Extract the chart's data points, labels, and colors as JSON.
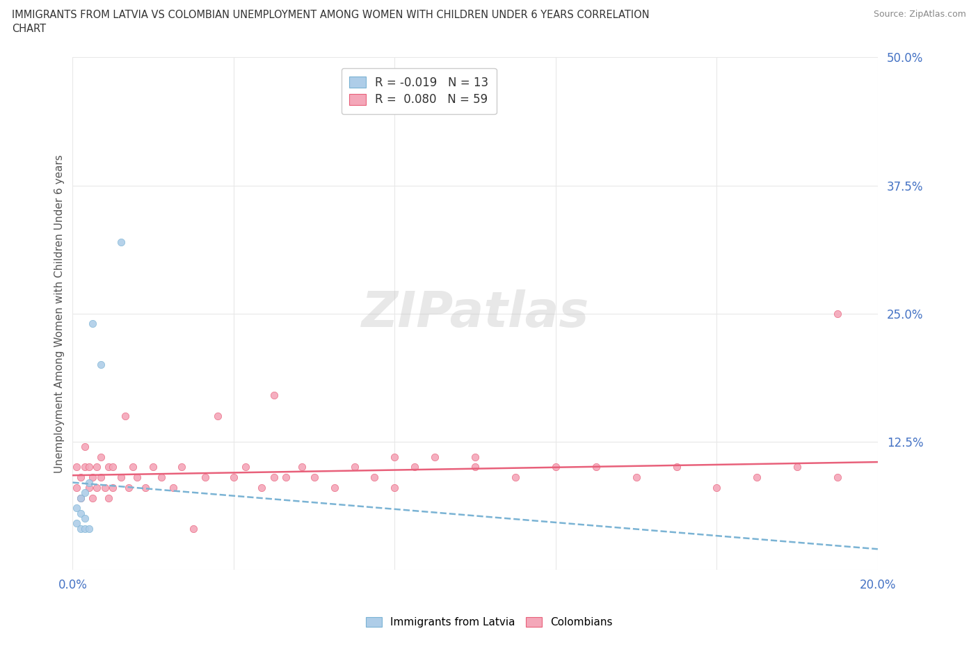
{
  "title_line1": "IMMIGRANTS FROM LATVIA VS COLOMBIAN UNEMPLOYMENT AMONG WOMEN WITH CHILDREN UNDER 6 YEARS CORRELATION",
  "title_line2": "CHART",
  "source": "Source: ZipAtlas.com",
  "ylabel": "Unemployment Among Women with Children Under 6 years",
  "xlim": [
    0.0,
    0.2
  ],
  "ylim": [
    0.0,
    0.5
  ],
  "xticks": [
    0.0,
    0.04,
    0.08,
    0.12,
    0.16,
    0.2
  ],
  "xtick_labels": [
    "0.0%",
    "",
    "",
    "",
    "",
    "20.0%"
  ],
  "yticks": [
    0.0,
    0.125,
    0.25,
    0.375,
    0.5
  ],
  "ytick_labels": [
    "",
    "12.5%",
    "25.0%",
    "37.5%",
    "50.0%"
  ],
  "color_latvia": "#aecde8",
  "color_colombia": "#f4a7b9",
  "color_trendline_latvia": "#7ab3d4",
  "color_trendline_colombia": "#e8607a",
  "color_text_blue": "#4472c4",
  "background_color": "#ffffff",
  "grid_color": "#e8e8e8",
  "watermark": "ZIPatlas",
  "legend_label1": "R = -0.019   N = 13",
  "legend_label2": "R =  0.080   N = 59",
  "bottom_legend_label1": "Immigrants from Latvia",
  "bottom_legend_label2": "Colombians",
  "latvia_x": [
    0.001,
    0.001,
    0.002,
    0.002,
    0.002,
    0.003,
    0.003,
    0.003,
    0.004,
    0.004,
    0.005,
    0.007,
    0.012
  ],
  "latvia_y": [
    0.045,
    0.06,
    0.04,
    0.055,
    0.07,
    0.04,
    0.05,
    0.075,
    0.04,
    0.085,
    0.24,
    0.2,
    0.32
  ],
  "colombia_x": [
    0.001,
    0.001,
    0.002,
    0.002,
    0.003,
    0.003,
    0.004,
    0.004,
    0.005,
    0.005,
    0.006,
    0.006,
    0.007,
    0.007,
    0.008,
    0.009,
    0.009,
    0.01,
    0.01,
    0.012,
    0.013,
    0.014,
    0.015,
    0.016,
    0.018,
    0.02,
    0.022,
    0.025,
    0.027,
    0.03,
    0.033,
    0.036,
    0.04,
    0.043,
    0.047,
    0.05,
    0.053,
    0.057,
    0.06,
    0.065,
    0.07,
    0.075,
    0.08,
    0.085,
    0.09,
    0.1,
    0.11,
    0.12,
    0.13,
    0.14,
    0.15,
    0.16,
    0.17,
    0.18,
    0.19,
    0.05,
    0.08,
    0.19,
    0.1
  ],
  "colombia_y": [
    0.08,
    0.1,
    0.07,
    0.09,
    0.1,
    0.12,
    0.08,
    0.1,
    0.07,
    0.09,
    0.1,
    0.08,
    0.09,
    0.11,
    0.08,
    0.07,
    0.1,
    0.08,
    0.1,
    0.09,
    0.15,
    0.08,
    0.1,
    0.09,
    0.08,
    0.1,
    0.09,
    0.08,
    0.1,
    0.04,
    0.09,
    0.15,
    0.09,
    0.1,
    0.08,
    0.17,
    0.09,
    0.1,
    0.09,
    0.08,
    0.1,
    0.09,
    0.08,
    0.1,
    0.11,
    0.1,
    0.09,
    0.1,
    0.1,
    0.09,
    0.1,
    0.08,
    0.09,
    0.1,
    0.09,
    0.09,
    0.11,
    0.25,
    0.11
  ]
}
